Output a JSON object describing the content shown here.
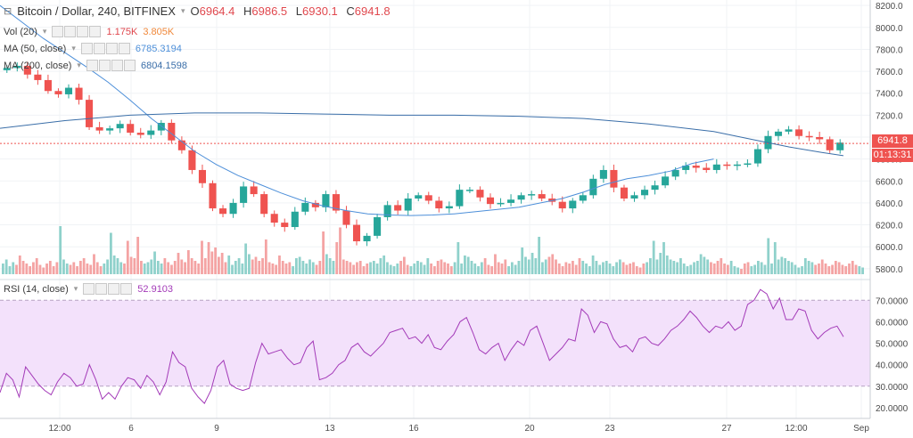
{
  "header": {
    "symbol": "Bitcoin / Dollar, 240, BITFINEX",
    "open_label": "O",
    "open": "6964.4",
    "high_label": "H",
    "high": "6986.5",
    "low_label": "L",
    "low": "6930.1",
    "close_label": "C",
    "close": "6941.8"
  },
  "indicators": {
    "vol": {
      "label": "Vol (20)",
      "v1": "1.175K",
      "v2": "3.805K"
    },
    "ma50": {
      "label": "MA (50, close)",
      "value": "6785.3194"
    },
    "ma200": {
      "label": "MA (200, close)",
      "value": "6804.1598"
    },
    "rsi": {
      "label": "RSI (14, close)",
      "value": "52.9103"
    }
  },
  "price_tags": {
    "last": "6941.8",
    "countdown": "01:13:31"
  },
  "colors": {
    "up": "#26a69a",
    "down": "#ef5350",
    "vol_up": "#8fd1cb",
    "vol_down": "#f4a3a3",
    "ma50": "#4d8fd9",
    "ma200": "#3a6ea8",
    "rsi_line": "#a33ab8",
    "rsi_band": "#f3e1fb"
  },
  "chart_data": [
    {
      "type": "candlestick",
      "title": "Bitcoin / Dollar, 240, BITFINEX",
      "ylim": [
        5750,
        8250
      ],
      "y_ticks": [
        5800,
        6000,
        6200,
        6400,
        6600,
        6800,
        7000,
        7200,
        7400,
        7600,
        7800,
        8000,
        8200
      ],
      "y_tick_labels": [
        "5800.0",
        "6000.0",
        "6200.0",
        "6400.0",
        "6600.0",
        "6800.0",
        "7000.0",
        "7200.0",
        "7400.0",
        "7600.0",
        "7800.0",
        "8000.0",
        "8200.0"
      ],
      "x_tick_labels": [
        "12:00",
        "6",
        "9",
        "13",
        "16",
        "20",
        "23",
        "27",
        "12:00",
        "Sep"
      ],
      "close_path": [
        [
          0,
          7630
        ],
        [
          3,
          7650
        ],
        [
          6,
          7570
        ],
        [
          9,
          7520
        ],
        [
          12,
          7420
        ],
        [
          15,
          7390
        ],
        [
          18,
          7450
        ],
        [
          21,
          7340
        ],
        [
          24,
          7090
        ],
        [
          27,
          7060
        ],
        [
          30,
          7080
        ],
        [
          33,
          7120
        ],
        [
          36,
          7040
        ],
        [
          39,
          7020
        ],
        [
          42,
          7060
        ],
        [
          45,
          7130
        ],
        [
          48,
          6970
        ],
        [
          51,
          6880
        ],
        [
          54,
          6700
        ],
        [
          57,
          6580
        ],
        [
          60,
          6350
        ],
        [
          63,
          6300
        ],
        [
          66,
          6400
        ],
        [
          69,
          6550
        ],
        [
          72,
          6480
        ],
        [
          75,
          6300
        ],
        [
          78,
          6220
        ],
        [
          81,
          6180
        ],
        [
          84,
          6320
        ],
        [
          87,
          6400
        ],
        [
          90,
          6360
        ],
        [
          93,
          6480
        ],
        [
          96,
          6330
        ],
        [
          99,
          6200
        ],
        [
          102,
          6050
        ],
        [
          105,
          6100
        ],
        [
          108,
          6270
        ],
        [
          111,
          6380
        ],
        [
          114,
          6330
        ],
        [
          117,
          6440
        ],
        [
          120,
          6470
        ],
        [
          123,
          6420
        ],
        [
          126,
          6350
        ],
        [
          129,
          6370
        ],
        [
          132,
          6520
        ],
        [
          135,
          6520
        ],
        [
          138,
          6450
        ],
        [
          141,
          6390
        ],
        [
          144,
          6400
        ],
        [
          147,
          6430
        ],
        [
          150,
          6470
        ],
        [
          153,
          6480
        ],
        [
          156,
          6440
        ],
        [
          159,
          6410
        ],
        [
          162,
          6350
        ],
        [
          165,
          6420
        ],
        [
          168,
          6470
        ],
        [
          171,
          6620
        ],
        [
          174,
          6700
        ],
        [
          177,
          6540
        ],
        [
          180,
          6440
        ],
        [
          183,
          6470
        ],
        [
          186,
          6520
        ],
        [
          189,
          6560
        ],
        [
          192,
          6640
        ],
        [
          195,
          6700
        ],
        [
          198,
          6740
        ],
        [
          201,
          6720
        ],
        [
          204,
          6700
        ],
        [
          207,
          6750
        ],
        [
          210,
          6740
        ],
        [
          213,
          6750
        ],
        [
          216,
          6760
        ],
        [
          219,
          6890
        ],
        [
          222,
          7010
        ],
        [
          225,
          7050
        ],
        [
          228,
          7070
        ],
        [
          231,
          7010
        ],
        [
          234,
          7000
        ],
        [
          237,
          6980
        ],
        [
          240,
          6880
        ],
        [
          243,
          6950
        ]
      ],
      "volume_scale_max": 4000,
      "volumes": [
        800,
        1100,
        600,
        900,
        700,
        1400,
        1000,
        800,
        600,
        900,
        1200,
        700,
        500,
        800,
        1000,
        600,
        900,
        3600,
        1100,
        800,
        700,
        900,
        600,
        1000,
        1200,
        800,
        700,
        1500,
        900,
        600,
        800,
        1100,
        3100,
        1400,
        1200,
        900,
        800,
        2500,
        1300,
        1200,
        2800,
        1000,
        800,
        900,
        1100,
        1700,
        1000,
        800,
        1200,
        900,
        700,
        1000,
        1600,
        1100,
        900,
        1800,
        1200,
        1000,
        800,
        2500,
        1200,
        2400,
        1700,
        2000,
        1300,
        1600,
        900,
        1400,
        700,
        1000,
        1200,
        800,
        2300,
        1500,
        1100,
        1300,
        1000,
        1200,
        2600,
        900,
        800,
        700,
        1400,
        1000,
        800,
        900,
        600,
        1200,
        1300,
        1000,
        800,
        1100,
        900,
        700,
        1000,
        3200,
        1500,
        1200,
        1000,
        2400,
        3500,
        1100,
        1000,
        900,
        700,
        900,
        1000,
        600,
        800,
        900,
        1000,
        800,
        1200,
        1400,
        900,
        700,
        600,
        800,
        1000,
        1300,
        700,
        600,
        800,
        1000,
        900,
        700,
        1200,
        800,
        600,
        1000,
        1100,
        900,
        800,
        600,
        900,
        2400,
        800,
        1400,
        1300,
        1000,
        800,
        600,
        900,
        1200,
        700,
        600,
        1500,
        900,
        800,
        1100,
        600,
        900,
        700,
        1000,
        2000,
        1300,
        1100,
        1600,
        1200,
        2800,
        900,
        1100,
        1300,
        1500,
        1100,
        800,
        600,
        900,
        800,
        1000,
        700,
        1200,
        1000,
        800,
        600,
        1400,
        1000,
        700,
        900,
        1000,
        800,
        600,
        900,
        1100,
        900,
        700,
        800,
        900,
        600,
        500,
        800,
        900,
        1200,
        2500,
        1100,
        1600,
        2400,
        1400,
        1100,
        1000,
        900,
        1200,
        800,
        600,
        700,
        900,
        1000,
        1500,
        1300,
        1100,
        900,
        800,
        1000,
        1200,
        800,
        700,
        1000,
        600,
        500,
        400,
        800,
        900,
        600,
        700,
        1000,
        900,
        700,
        2700,
        800,
        2400,
        1100,
        1300,
        1200,
        1000,
        900,
        700,
        500,
        600,
        1200,
        1000,
        900,
        700,
        800,
        1100,
        800,
        600,
        700,
        1000,
        900,
        700,
        600,
        800,
        1000,
        700,
        600,
        500
      ]
    },
    {
      "type": "line",
      "name": "MA (50, close)",
      "series": [
        {
          "name": "MA 50",
          "values": [
            [
              0,
              8200
            ],
            [
              10,
              8050
            ],
            [
              20,
              7900
            ],
            [
              30,
              7770
            ],
            [
              40,
              7640
            ],
            [
              50,
              7500
            ],
            [
              60,
              7340
            ],
            [
              70,
              7170
            ],
            [
              80,
              7020
            ],
            [
              90,
              6870
            ],
            [
              100,
              6750
            ],
            [
              110,
              6650
            ],
            [
              120,
              6570
            ],
            [
              130,
              6490
            ],
            [
              140,
              6420
            ],
            [
              150,
              6370
            ],
            [
              160,
              6330
            ],
            [
              170,
              6300
            ],
            [
              180,
              6290
            ],
            [
              190,
              6285
            ],
            [
              200,
              6290
            ],
            [
              210,
              6300
            ],
            [
              220,
              6320
            ],
            [
              230,
              6340
            ],
            [
              240,
              6360
            ],
            [
              250,
              6400
            ],
            [
              260,
              6440
            ],
            [
              270,
              6500
            ],
            [
              280,
              6570
            ],
            [
              290,
              6620
            ],
            [
              300,
              6650
            ],
            [
              310,
              6690
            ],
            [
              320,
              6760
            ],
            [
              330,
              6800
            ]
          ]
        }
      ]
    },
    {
      "type": "line",
      "name": "MA (200, close)",
      "series": [
        {
          "name": "MA 200",
          "values": [
            [
              0,
              7080
            ],
            [
              30,
              7150
            ],
            [
              60,
              7200
            ],
            [
              90,
              7220
            ],
            [
              120,
              7220
            ],
            [
              150,
              7210
            ],
            [
              180,
              7200
            ],
            [
              210,
              7200
            ],
            [
              240,
              7190
            ],
            [
              270,
              7170
            ],
            [
              300,
              7120
            ],
            [
              330,
              7050
            ],
            [
              350,
              6970
            ],
            [
              365,
              6910
            ],
            [
              380,
              6860
            ],
            [
              390,
              6830
            ]
          ]
        }
      ]
    },
    {
      "type": "line",
      "name": "RSI (14, close)",
      "ylim": [
        15,
        78
      ],
      "y_ticks": [
        20,
        30,
        40,
        50,
        60,
        70
      ],
      "y_tick_labels": [
        "20.0000",
        "30.0000",
        "40.0000",
        "50.0000",
        "60.0000",
        "70.0000"
      ],
      "band": [
        30,
        70
      ],
      "values": [
        27,
        36,
        33,
        25,
        39,
        35,
        31,
        28,
        26,
        32,
        36,
        34,
        30,
        31,
        40,
        33,
        24,
        27,
        24,
        30,
        34,
        33,
        29,
        35,
        32,
        26,
        32,
        46,
        41,
        39,
        29,
        25,
        22,
        28,
        39,
        42,
        31,
        29,
        28,
        29,
        41,
        50,
        45,
        46,
        47,
        43,
        40,
        41,
        48,
        51,
        33,
        34,
        36,
        40,
        42,
        48,
        50,
        46,
        44,
        47,
        50,
        55,
        56,
        57,
        52,
        53,
        50,
        54,
        48,
        47,
        51,
        54,
        60,
        62,
        55,
        47,
        45,
        48,
        50,
        42,
        47,
        51,
        49,
        56,
        58,
        50,
        42,
        45,
        48,
        52,
        51,
        66,
        63,
        55,
        60,
        59,
        52,
        48,
        49,
        46,
        52,
        53,
        50,
        49,
        52,
        56,
        58,
        61,
        65,
        62,
        58,
        55,
        58,
        57,
        60,
        56,
        58,
        68,
        70,
        75,
        73,
        66,
        71,
        61,
        61,
        66,
        65,
        56,
        52,
        55,
        57,
        58,
        53
      ]
    }
  ]
}
